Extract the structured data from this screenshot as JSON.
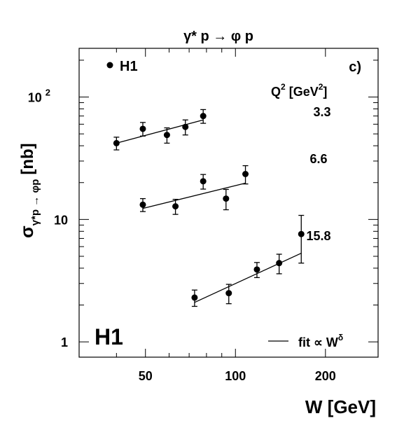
{
  "chart_data": {
    "type": "scatter",
    "title": "γ* p → φ p",
    "xlabel": "W [GeV]",
    "ylabel": {
      "sigma": "σ",
      "subscript": "γ*p → φp",
      "unit": "[nb]"
    },
    "x_scale": "log",
    "y_scale": "log",
    "xlim": [
      30,
      300
    ],
    "ylim": [
      0.75,
      250
    ],
    "x_ticks": [
      {
        "value": 50,
        "label": "50"
      },
      {
        "value": 100,
        "label": "100"
      },
      {
        "value": 200,
        "label": "200"
      }
    ],
    "y_ticks": [
      {
        "value": 1,
        "label": "1"
      },
      {
        "value": 10,
        "label": "10"
      },
      {
        "value": 100,
        "label": "10",
        "exponent": "2"
      }
    ],
    "panel_label": "c)",
    "legend": {
      "marker_label": "H1",
      "line_label": "fit ∝ W",
      "line_label_sup": "δ"
    },
    "experiment_logo": "H1",
    "q2_header": {
      "text": "Q",
      "sup1": "2",
      "unit_text": " [GeV",
      "sup2": "2",
      "close": "]"
    },
    "series": [
      {
        "name": "3.3",
        "x": [
          40,
          49,
          59,
          68,
          78
        ],
        "y": [
          42,
          55,
          49,
          57,
          70
        ],
        "err": [
          5,
          7,
          7,
          8,
          9
        ],
        "fit": {
          "x": [
            40,
            78
          ],
          "y": [
            42,
            65
          ]
        }
      },
      {
        "name": "6.6",
        "x": [
          49,
          63,
          78,
          93,
          108
        ],
        "y": [
          13.2,
          12.8,
          20.5,
          14.8,
          23.5
        ],
        "err": [
          1.6,
          1.8,
          2.8,
          2.8,
          4.0
        ],
        "fit": {
          "x": [
            49,
            108
          ],
          "y": [
            12.3,
            19.8
          ]
        }
      },
      {
        "name": "15.8",
        "x": [
          73,
          95,
          118,
          140,
          166
        ],
        "y": [
          2.3,
          2.5,
          3.9,
          4.4,
          7.6
        ],
        "err": [
          0.35,
          0.45,
          0.55,
          0.8,
          3.2
        ],
        "fit": {
          "x": [
            73,
            166
          ],
          "y": [
            2.1,
            5.3
          ]
        }
      }
    ]
  }
}
